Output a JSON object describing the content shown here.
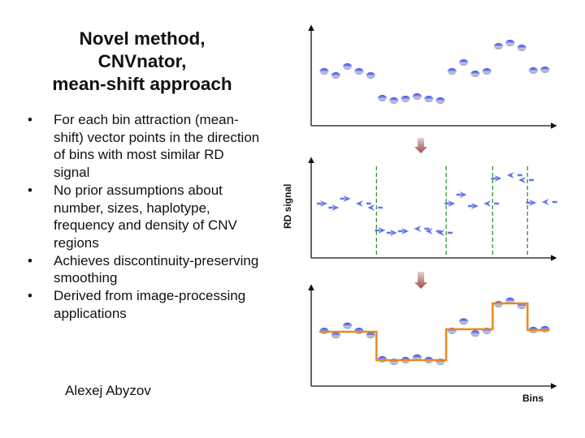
{
  "slide": {
    "title_lines": [
      "Novel method,",
      "CNVnator,",
      "mean-shift approach"
    ],
    "bullets": [
      "For each bin attraction (mean-shift) vector points in the direction of bins with most similar RD signal",
      "No prior assumptions about number, sizes, haplotype, frequency and density of CNV regions",
      "Achieves discontinuity-preserving smoothing",
      "Derived from image-processing applications"
    ],
    "author": "Alexej Abyzov"
  },
  "chart_data": [
    {
      "type": "scatter",
      "title": "",
      "xlabel": "",
      "ylabel": "",
      "x": [
        1,
        2,
        3,
        4,
        5,
        6,
        7,
        8,
        9,
        10,
        11,
        12,
        13,
        14,
        15,
        16,
        17,
        18,
        19,
        20
      ],
      "y": [
        67,
        62,
        73,
        67,
        62,
        34,
        31,
        33,
        36,
        33,
        31,
        67,
        78,
        64,
        67,
        98,
        102,
        96,
        68,
        69
      ],
      "color": "#4a5ee8"
    },
    {
      "type": "scatter",
      "title": "",
      "xlabel": "",
      "ylabel": "RD signal",
      "x": [
        1,
        2,
        3,
        4,
        5,
        6,
        7,
        8,
        9,
        10,
        11,
        12,
        13,
        14,
        15,
        16,
        17,
        18,
        19,
        20
      ],
      "y": [
        67,
        62,
        73,
        67,
        62,
        34,
        31,
        33,
        36,
        33,
        31,
        67,
        78,
        64,
        67,
        98,
        102,
        96,
        68,
        69
      ],
      "arrow_directions": [
        "right",
        "right",
        "right",
        "left",
        "left",
        "right",
        "right",
        "right",
        "left",
        "left",
        "left",
        "right",
        "right",
        "right",
        "left",
        "right",
        "left",
        "left",
        "right",
        "left"
      ],
      "segment_boundaries": [
        5.5,
        11.5,
        15.5,
        18.5
      ],
      "boundary_color": "#2a9a2a"
    },
    {
      "type": "line",
      "title": "",
      "xlabel": "Bins",
      "ylabel": "",
      "x": [
        1,
        2,
        3,
        4,
        5,
        6,
        7,
        8,
        9,
        10,
        11,
        12,
        13,
        14,
        15,
        16,
        17,
        18,
        19,
        20
      ],
      "y": [
        67,
        62,
        73,
        67,
        62,
        34,
        31,
        33,
        36,
        33,
        31,
        67,
        78,
        64,
        67,
        98,
        102,
        96,
        68,
        69
      ],
      "segments": [
        {
          "from": 1,
          "to": 5,
          "level": 66
        },
        {
          "from": 6,
          "to": 11,
          "level": 33
        },
        {
          "from": 12,
          "to": 15,
          "level": 69
        },
        {
          "from": 16,
          "to": 18,
          "level": 99
        },
        {
          "from": 19,
          "to": 20,
          "level": 68
        }
      ],
      "line_color": "#e88a1a"
    }
  ]
}
